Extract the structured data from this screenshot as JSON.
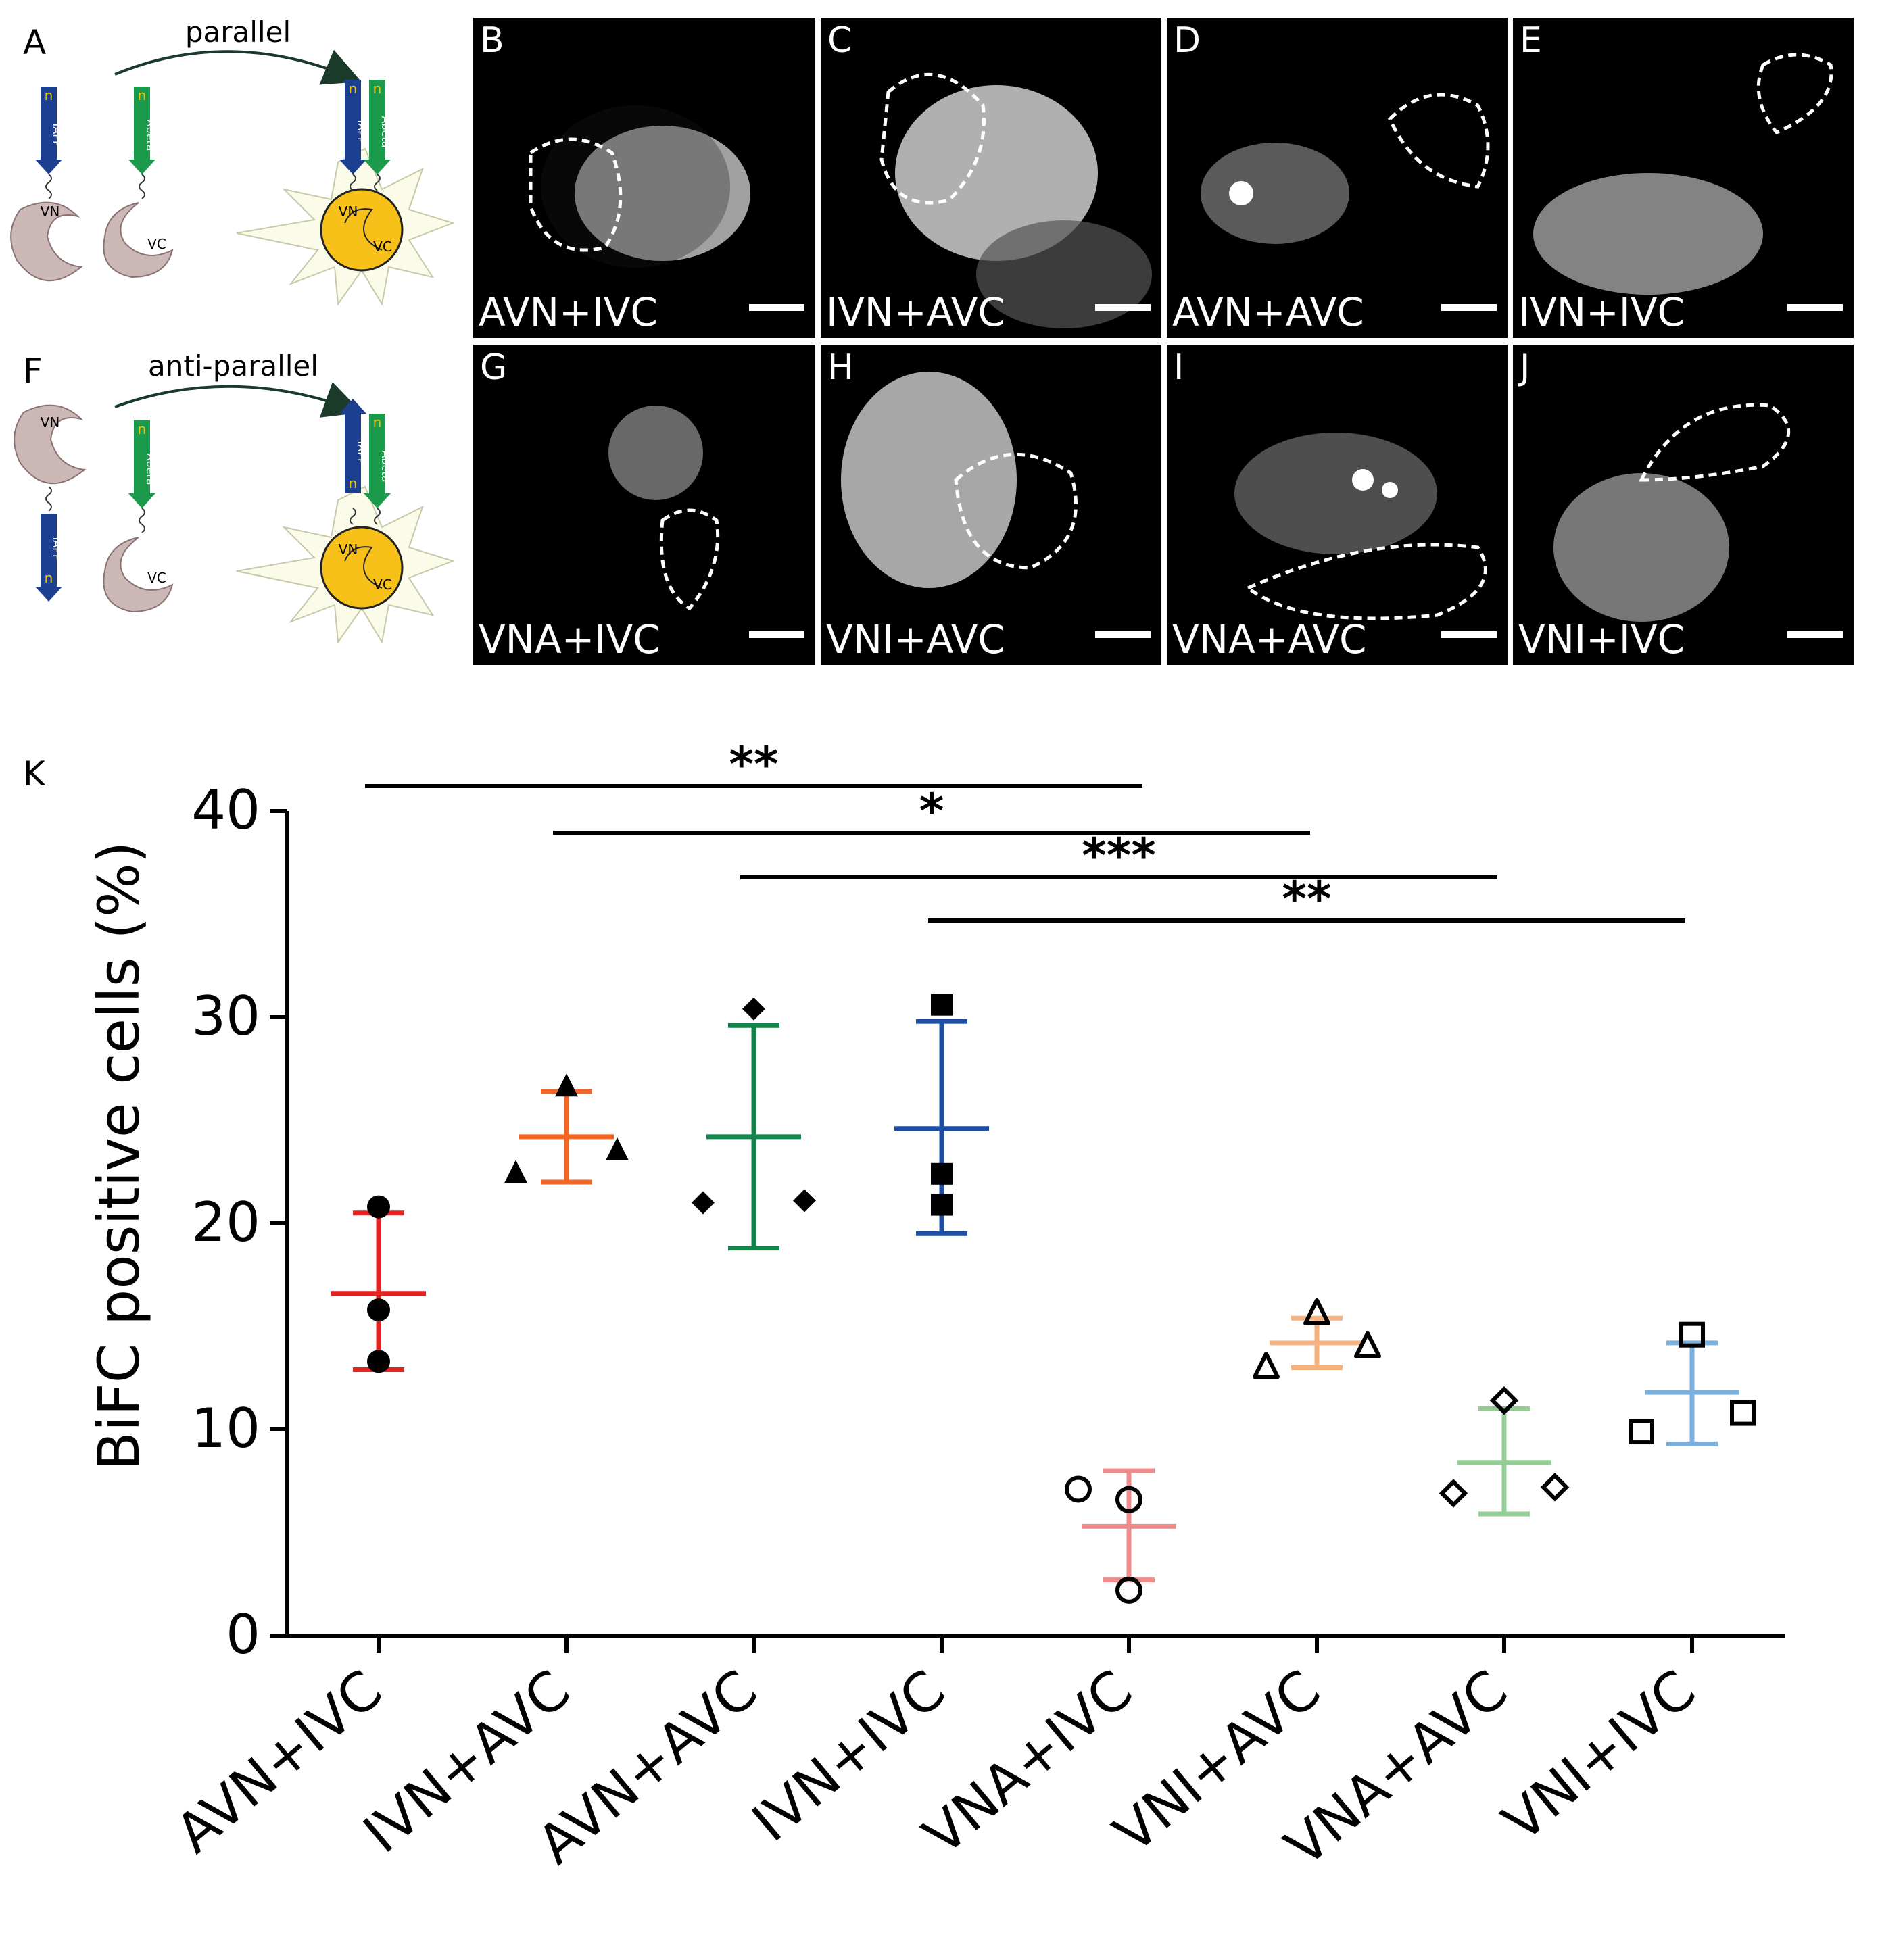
{
  "schematics": [
    {
      "id": "parallel",
      "letter": "A",
      "label": "parallel",
      "tags": [
        "IAPP",
        "Abeta",
        "IAPP",
        "Abeta"
      ],
      "termini": [
        "n",
        "n",
        "n",
        "n"
      ],
      "fragments": [
        "VN",
        "VC",
        "VN",
        "VC"
      ]
    },
    {
      "id": "anti-parallel",
      "letter": "F",
      "label": "anti-parallel",
      "tags": [
        "IAPP",
        "Abeta",
        "IAPP",
        "Abeta"
      ],
      "termini": [
        "n",
        "n",
        "n",
        "n"
      ],
      "fragments": [
        "VN",
        "VC",
        "VN",
        "VC"
      ]
    }
  ],
  "micrographs": [
    {
      "letter": "B",
      "caption": "AVN+IVC"
    },
    {
      "letter": "C",
      "caption": "IVN+AVC"
    },
    {
      "letter": "D",
      "caption": "AVN+AVC"
    },
    {
      "letter": "E",
      "caption": "IVN+IVC"
    },
    {
      "letter": "G",
      "caption": "VNA+IVC"
    },
    {
      "letter": "H",
      "caption": "VNI+AVC"
    },
    {
      "letter": "I",
      "caption": "VNA+AVC"
    },
    {
      "letter": "J",
      "caption": "VNI+IVC"
    }
  ],
  "chart_data": {
    "type": "scatter",
    "panel_letter": "K",
    "title": "",
    "xlabel": "",
    "ylabel": "BiFC positive cells (%)",
    "ylim": [
      0,
      40
    ],
    "yticks": [
      0,
      10,
      20,
      30,
      40
    ],
    "categories": [
      "AVN+IVC",
      "IVN+AVC",
      "AVN+AVC",
      "IVN+IVC",
      "VNA+IVC",
      "VNI+AVC",
      "VNA+AVC",
      "VNI+IVC"
    ],
    "series": [
      {
        "category": "AVN+IVC",
        "color": "#e42222",
        "marker": "circle",
        "filled": true,
        "points": [
          20.8,
          15.8,
          13.3
        ],
        "mean": 16.6,
        "sd_low": 12.9,
        "sd_high": 20.5
      },
      {
        "category": "IVN+AVC",
        "color": "#f26522",
        "marker": "triangle",
        "filled": true,
        "points": [
          22.4,
          26.6,
          23.5
        ],
        "mean": 24.2,
        "sd_low": 22.0,
        "sd_high": 26.4
      },
      {
        "category": "AVN+AVC",
        "color": "#13854a",
        "marker": "diamond",
        "filled": true,
        "points": [
          21.0,
          30.4,
          21.1
        ],
        "mean": 24.2,
        "sd_low": 18.8,
        "sd_high": 29.6
      },
      {
        "category": "IVN+IVC",
        "color": "#1d4ea3",
        "marker": "square",
        "filled": true,
        "points": [
          30.6,
          22.4,
          20.9
        ],
        "mean": 24.6,
        "sd_low": 19.5,
        "sd_high": 29.8
      },
      {
        "category": "VNA+IVC",
        "color": "#ef8b8b",
        "marker": "circle",
        "filled": false,
        "points": [
          7.1,
          6.6,
          2.2
        ],
        "mean": 5.3,
        "sd_low": 2.7,
        "sd_high": 8.0
      },
      {
        "category": "VNI+AVC",
        "color": "#f6b27e",
        "marker": "triangle",
        "filled": false,
        "points": [
          13.0,
          15.6,
          14.0
        ],
        "mean": 14.2,
        "sd_low": 13.0,
        "sd_high": 15.4
      },
      {
        "category": "VNA+AVC",
        "color": "#94cd95",
        "marker": "diamond",
        "filled": false,
        "points": [
          6.9,
          11.4,
          7.2
        ],
        "mean": 8.4,
        "sd_low": 5.9,
        "sd_high": 11.0
      },
      {
        "category": "VNI+IVC",
        "color": "#79b0df",
        "marker": "square",
        "filled": false,
        "points": [
          9.9,
          14.6,
          10.8
        ],
        "mean": 11.8,
        "sd_low": 9.3,
        "sd_high": 14.2
      }
    ],
    "significance": [
      {
        "from": "AVN+IVC",
        "to": "VNA+IVC",
        "label": "**"
      },
      {
        "from": "IVN+AVC",
        "to": "VNI+AVC",
        "label": "*"
      },
      {
        "from": "AVN+AVC",
        "to": "VNA+AVC",
        "label": "***"
      },
      {
        "from": "IVN+IVC",
        "to": "VNI+IVC",
        "label": "**"
      }
    ]
  }
}
